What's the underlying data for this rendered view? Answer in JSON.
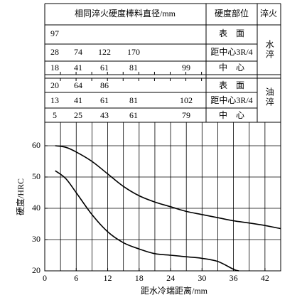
{
  "table": {
    "header": [
      "相同淬火硬度棒料直径/mm",
      "硬度部位",
      "淬火"
    ],
    "groups": [
      {
        "label": "水淬",
        "rows": [
          {
            "values": [
              97
            ],
            "position": "表　面"
          },
          {
            "values": [
              28,
              74,
              122,
              170
            ],
            "position": "距中心3R/4"
          },
          {
            "values": [
              18,
              41,
              61,
              81,
              99
            ],
            "position": "中　心"
          }
        ]
      },
      {
        "label": "油淬",
        "rows": [
          {
            "values": [
              20,
              64,
              86
            ],
            "position": "表　面"
          },
          {
            "values": [
              13,
              41,
              61,
              81,
              102
            ],
            "position": "距中心3R/4"
          },
          {
            "values": [
              5,
              25,
              43,
              61,
              79
            ],
            "position": "中　心"
          }
        ]
      }
    ]
  },
  "chart_data": {
    "type": "line",
    "x_label": "距水冷端距离/mm",
    "y_label": "硬度/HRC",
    "series": [
      {
        "color": "#000000",
        "x": [
          2,
          4,
          6,
          9,
          12,
          15,
          18,
          21,
          24,
          27,
          30,
          33,
          36,
          39,
          42,
          45
        ],
        "values": [
          60,
          59.5,
          58,
          55,
          51,
          47,
          44,
          42,
          40.5,
          39,
          38,
          37,
          36,
          35.3,
          34.5,
          33.5
        ]
      },
      {
        "color": "#000000",
        "x": [
          2,
          4,
          6,
          9,
          12,
          15,
          18,
          21,
          24,
          27,
          30,
          33,
          36,
          37
        ],
        "values": [
          52,
          49.5,
          45,
          38,
          32.5,
          29,
          27,
          25.5,
          25,
          24.5,
          24,
          23,
          20.5,
          20
        ]
      }
    ],
    "xlim": [
      0,
      45
    ],
    "ylim": [
      20,
      67.5
    ],
    "xticks": [
      0,
      6,
      12,
      18,
      24,
      30,
      36,
      42
    ],
    "yticks": [
      20,
      30,
      40,
      50,
      60
    ],
    "xgrid": [
      3,
      6,
      9,
      12,
      15,
      18,
      21,
      24,
      27,
      30,
      33,
      36,
      39,
      42
    ],
    "ygrid": [
      30,
      40,
      50,
      60
    ],
    "grid": true
  }
}
